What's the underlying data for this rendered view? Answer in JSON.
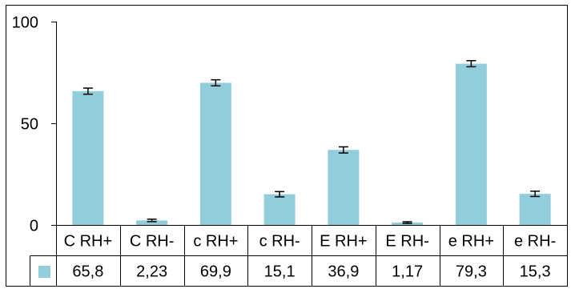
{
  "chart_data": {
    "type": "bar",
    "categories": [
      "C RH+",
      "C RH-",
      "c RH+",
      "c RH-",
      "E RH+",
      "E RH-",
      "e RH+",
      "e RH-"
    ],
    "series": [
      {
        "values": [
          65.8,
          2.23,
          69.9,
          15.1,
          36.9,
          1.17,
          79.3,
          15.3
        ],
        "value_labels": [
          "65,8",
          "2,23",
          "69,9",
          "15,1",
          "36,9",
          "1,17",
          "79,3",
          "15,3"
        ],
        "error": [
          1.5,
          0.6,
          1.5,
          1.3,
          1.5,
          0.4,
          1.5,
          1.3
        ],
        "color": "#92cddc"
      }
    ],
    "ylim": [
      0,
      100
    ],
    "yticks": [
      0,
      50,
      100
    ],
    "ytick_labels": [
      "0",
      "50",
      "100"
    ],
    "gridlines": false,
    "data_table": true,
    "frame_color": "#000000"
  }
}
